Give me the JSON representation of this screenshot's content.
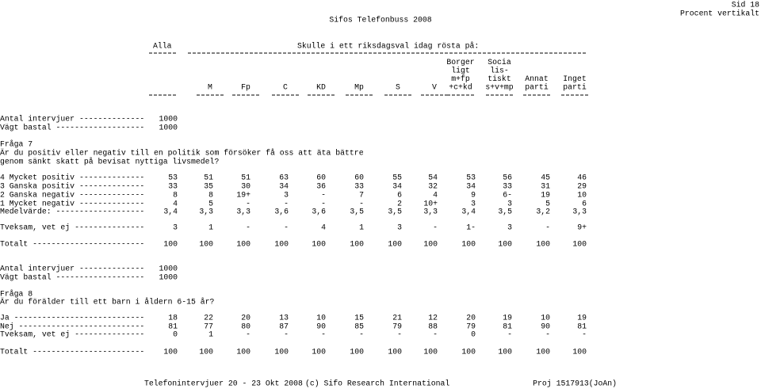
{
  "header": {
    "title": "Sifos Telefonbuss 2008",
    "page": "Sid 18",
    "subtitle": "Procent vertikalt"
  },
  "table_header": {
    "total_label": "Alla",
    "question": "Skulle i ett riksdagsval idag rösta på:",
    "columns": [
      [
        "M"
      ],
      [
        "Fp"
      ],
      [
        "C"
      ],
      [
        "KD"
      ],
      [
        "Mp"
      ],
      [
        "S"
      ],
      [
        "V"
      ],
      [
        "Borger",
        "ligt",
        "m+fp",
        "+c+kd"
      ],
      [
        "Socia",
        "lis-",
        "tiskt",
        "s+v+mp"
      ],
      [
        "Annat",
        "parti"
      ],
      [
        "Inget",
        "parti"
      ]
    ]
  },
  "sections": [
    {
      "base": [
        {
          "label": "Antal intervjuer --------------",
          "value": "1000"
        },
        {
          "label": "Vägt bastal -------------------",
          "value": "1000"
        }
      ],
      "question": [
        "Fråga 7",
        "Är du positiv eller negativ till en politik som försöker få oss att äta bättre",
        "genom sänkt skatt på bevisat nyttiga livsmedel?"
      ],
      "rows": [
        {
          "label": "4 Mycket positiv --------------",
          "cells": [
            "53",
            "51",
            "51",
            "63",
            "60",
            "60",
            "55",
            "54",
            "53",
            "56",
            "45",
            "46"
          ]
        },
        {
          "label": "3 Ganska positiv --------------",
          "cells": [
            "33",
            "35",
            "30",
            "34",
            "36",
            "33",
            "34",
            "32",
            "34",
            "33",
            "31",
            "29"
          ]
        },
        {
          "label": "2 Ganska negativ --------------",
          "cells": [
            "8",
            "8",
            "19+",
            "3",
            "-",
            "7",
            "6",
            "4",
            "9",
            "6-",
            "19",
            "10"
          ]
        },
        {
          "label": "1 Mycket negativ --------------",
          "cells": [
            "4",
            "5",
            "-",
            "-",
            "-",
            "-",
            "2",
            "10+",
            "3",
            "3",
            "5",
            "6"
          ]
        },
        {
          "label": "Medelvärde: -------------------",
          "cells": [
            "3,4",
            "3,3",
            "3,3",
            "3,6",
            "3,6",
            "3,5",
            "3,5",
            "3,3",
            "3,4",
            "3,5",
            "3,2",
            "3,3"
          ]
        },
        {
          "label": "Tveksam, vet ej ---------------",
          "cells": [
            "3",
            "1",
            "-",
            "-",
            "4",
            "1",
            "3",
            "-",
            "1-",
            "3",
            "-",
            "9+"
          ]
        },
        {
          "label": "Totalt ------------------------",
          "cells": [
            "100",
            "100",
            "100",
            "100",
            "100",
            "100",
            "100",
            "100",
            "100",
            "100",
            "100",
            "100"
          ]
        }
      ]
    },
    {
      "base": [
        {
          "label": "Antal intervjuer --------------",
          "value": "1000"
        },
        {
          "label": "Vägt bastal -------------------",
          "value": "1000"
        }
      ],
      "question": [
        "Fråga 8",
        "Är du förälder till ett barn i åldern 6-15 år?"
      ],
      "rows": [
        {
          "label": "Ja ----------------------------",
          "cells": [
            "18",
            "22",
            "20",
            "13",
            "10",
            "15",
            "21",
            "12",
            "20",
            "19",
            "10",
            "19"
          ]
        },
        {
          "label": "Nej ---------------------------",
          "cells": [
            "81",
            "77",
            "80",
            "87",
            "90",
            "85",
            "79",
            "88",
            "79",
            "81",
            "90",
            "81"
          ]
        },
        {
          "label": "Tveksam, vet ej ---------------",
          "cells": [
            "0",
            "1",
            "-",
            "-",
            "-",
            "-",
            "-",
            "-",
            "0",
            "-",
            "-",
            "-"
          ]
        },
        {
          "label": "Totalt ------------------------",
          "cells": [
            "100",
            "100",
            "100",
            "100",
            "100",
            "100",
            "100",
            "100",
            "100",
            "100",
            "100",
            "100"
          ]
        }
      ]
    }
  ],
  "footer": {
    "left": "Telefonintervjuer 20 - 23 Okt 2008",
    "center": "(c) Sifo Research International",
    "right": "Proj 1517913(JoAn)"
  }
}
